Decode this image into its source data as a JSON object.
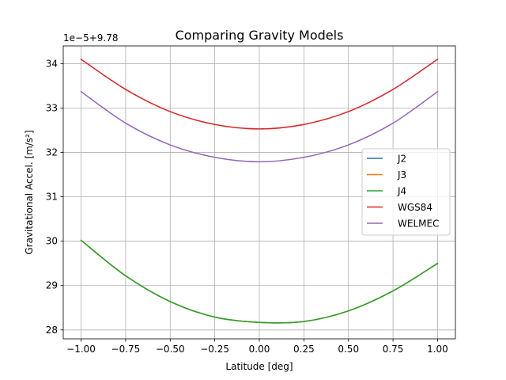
{
  "chart_data": {
    "type": "line",
    "title": "Comparing Gravity Models",
    "xlabel": "Latitude [deg]",
    "ylabel": "Gravitational Accel. [m/s²]",
    "offset_text": "1e−5+9.78",
    "xlim": [
      -1.1,
      1.1
    ],
    "ylim": [
      27.8,
      34.4
    ],
    "xticks": [
      -1.0,
      -0.75,
      -0.5,
      -0.25,
      0.0,
      0.25,
      0.5,
      0.75,
      1.0
    ],
    "xtick_labels": [
      "−1.00",
      "−0.75",
      "−0.50",
      "−0.25",
      "0.00",
      "0.25",
      "0.50",
      "0.75",
      "1.00"
    ],
    "yticks": [
      28,
      29,
      30,
      31,
      32,
      33,
      34
    ],
    "ytick_labels": [
      "28",
      "29",
      "30",
      "31",
      "32",
      "33",
      "34"
    ],
    "grid": true,
    "legend_position": "center-right",
    "x": [
      -1.0,
      -0.75,
      -0.5,
      -0.25,
      0.0,
      0.25,
      0.5,
      0.75,
      1.0
    ],
    "series": [
      {
        "name": "J2",
        "color": "#1f77b4",
        "values": [
          30.02,
          29.22,
          28.64,
          28.29,
          28.17,
          28.19,
          28.43,
          28.88,
          29.5
        ]
      },
      {
        "name": "J3",
        "color": "#ff7f0e",
        "values": [
          30.02,
          29.22,
          28.64,
          28.29,
          28.17,
          28.19,
          28.43,
          28.88,
          29.5
        ]
      },
      {
        "name": "J4",
        "color": "#2ca02c",
        "values": [
          30.02,
          29.22,
          28.64,
          28.29,
          28.17,
          28.19,
          28.43,
          28.88,
          29.5
        ]
      },
      {
        "name": "WGS84",
        "color": "#d62728",
        "values": [
          34.1,
          33.42,
          32.92,
          32.63,
          32.53,
          32.63,
          32.92,
          33.42,
          34.1
        ]
      },
      {
        "name": "WELMEC",
        "color": "#9467bd",
        "values": [
          33.37,
          32.66,
          32.17,
          31.89,
          31.79,
          31.89,
          32.17,
          32.66,
          33.37
        ]
      }
    ]
  }
}
